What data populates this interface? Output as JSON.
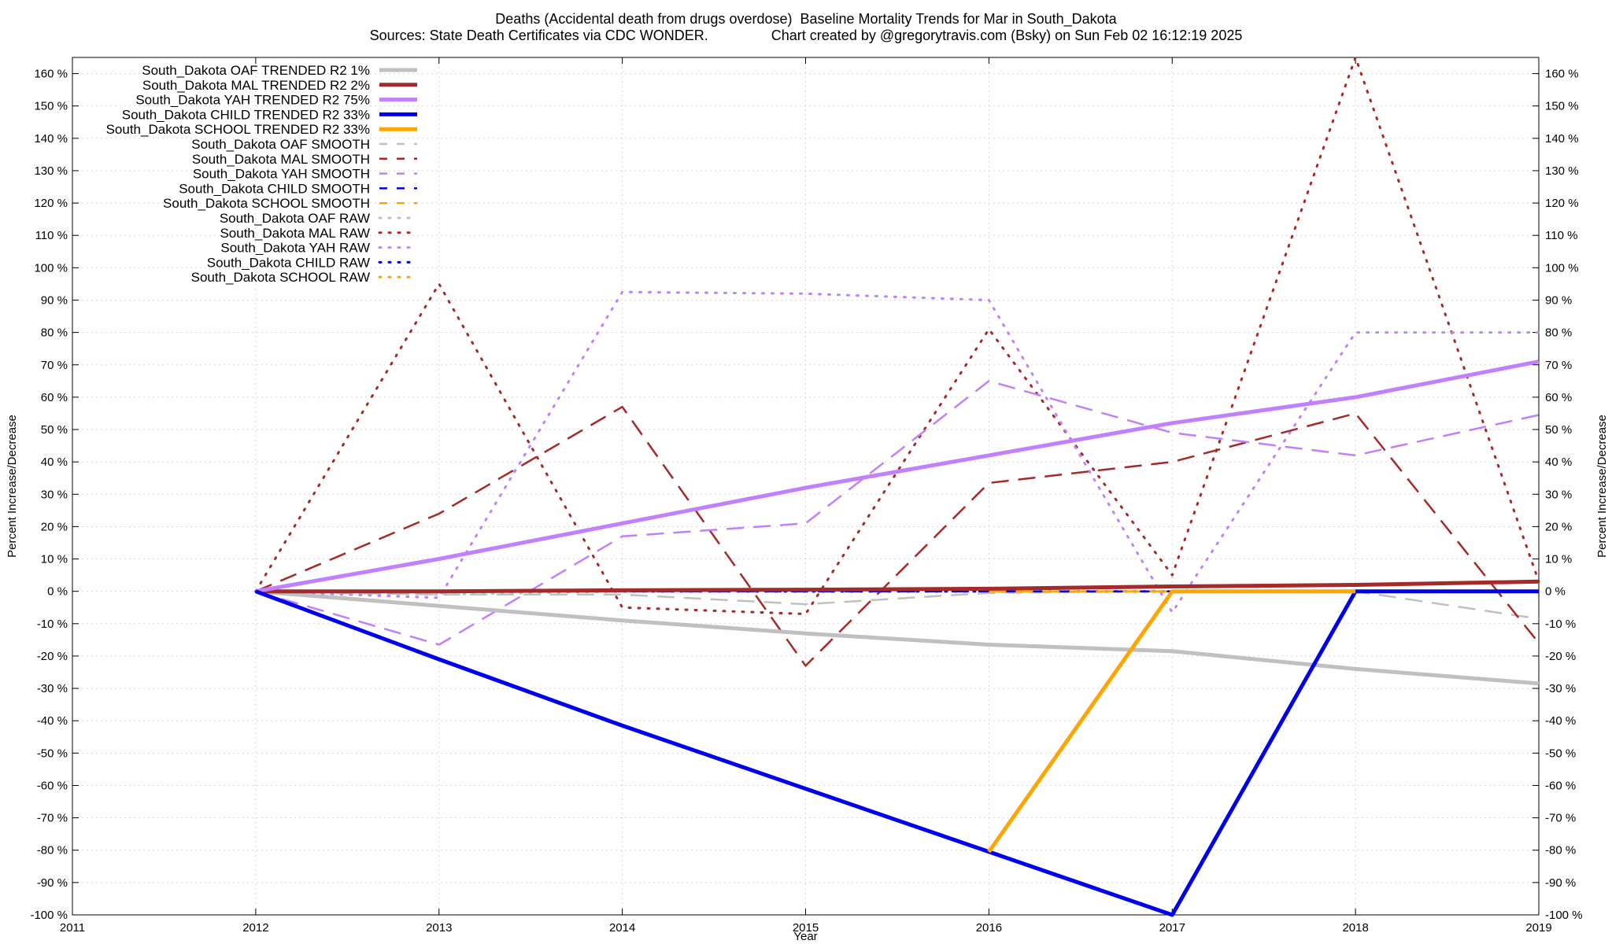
{
  "chart_data": {
    "type": "line",
    "title": "Deaths (Accidental death from drugs overdose)  Baseline Mortality Trends for Mar in South_Dakota",
    "subtitle": "Sources: State Death Certificates via CDC WONDER.                Chart created by @gregorytravis.com (Bsky) on Sun Feb 02 16:12:19 2025",
    "xlabel": "Year",
    "ylabel": "Percent Increase/Decrease",
    "y2label": "Percent Increase/Decrease",
    "xlim": [
      2011,
      2019
    ],
    "ylim": [
      -100,
      165
    ],
    "x_ticks": [
      "2011",
      "2012",
      "2013",
      "2014",
      "2015",
      "2016",
      "2017",
      "2018",
      "2019"
    ],
    "y_ticks": [
      "-100 %",
      "-90 %",
      "-80 %",
      "-70 %",
      "-60 %",
      "-50 %",
      "-40 %",
      "-30 %",
      "-20 %",
      "-10 %",
      "0 %",
      "10 %",
      "20 %",
      "30 %",
      "40 %",
      "50 %",
      "60 %",
      "70 %",
      "80 %",
      "90 %",
      "100 %",
      "110 %",
      "120 %",
      "130 %",
      "140 %",
      "150 %",
      "160 %"
    ],
    "y_tick_values": [
      -100,
      -90,
      -80,
      -70,
      -60,
      -50,
      -40,
      -30,
      -20,
      -10,
      0,
      10,
      20,
      30,
      40,
      50,
      60,
      70,
      80,
      90,
      100,
      110,
      120,
      130,
      140,
      150,
      160
    ],
    "grid": true,
    "legend_position": "top-left",
    "series": [
      {
        "name": "South_Dakota OAF TRENDED R2   1%",
        "style": "solid",
        "color": "#c0c0c0",
        "x": [
          2012,
          2013,
          2014,
          2015,
          2016,
          2017,
          2018,
          2019
        ],
        "y": [
          0,
          -4.5,
          -9,
          -13,
          -16.5,
          -18.5,
          -24,
          -28.5
        ]
      },
      {
        "name": "South_Dakota MAL TRENDED R2   2%",
        "style": "solid",
        "color": "#a52a2a",
        "x": [
          2012,
          2013,
          2014,
          2015,
          2016,
          2017,
          2018,
          2019
        ],
        "y": [
          0,
          0,
          0.3,
          0.5,
          0.8,
          1.5,
          2,
          3
        ]
      },
      {
        "name": "South_Dakota YAH TRENDED R2  75%",
        "style": "solid",
        "color": "#c080ff",
        "x": [
          2012,
          2013,
          2014,
          2015,
          2016,
          2017,
          2018,
          2019
        ],
        "y": [
          0,
          10,
          21,
          32,
          42,
          52,
          60,
          71
        ]
      },
      {
        "name": "South_Dakota CHILD TRENDED R2  33%",
        "style": "solid",
        "color": "#0000ee",
        "x": [
          2012,
          2013,
          2014,
          2015,
          2016,
          2017,
          2018,
          2019
        ],
        "y": [
          0,
          -21,
          -41.5,
          -61,
          -80.5,
          -100,
          0,
          0
        ]
      },
      {
        "name": "South_Dakota SCHOOL TRENDED R2  33%",
        "style": "solid",
        "color": "#ffa500",
        "x": [
          2016,
          2017,
          2018
        ],
        "y": [
          -80.5,
          0,
          0
        ]
      },
      {
        "name": "South_Dakota OAF SMOOTH",
        "style": "dashed",
        "color": "#c0c0c0",
        "x": [
          2012,
          2013,
          2014,
          2015,
          2016,
          2017,
          2018,
          2019
        ],
        "y": [
          0,
          -1,
          -1,
          -4,
          -0.5,
          0,
          0,
          -8.5
        ]
      },
      {
        "name": "South_Dakota MAL SMOOTH",
        "style": "dashed",
        "color": "#a52a2a",
        "x": [
          2012,
          2013,
          2014,
          2015,
          2016,
          2017,
          2018,
          2019
        ],
        "y": [
          0,
          24,
          57,
          -23,
          33.5,
          40,
          55,
          -16
        ]
      },
      {
        "name": "South_Dakota YAH SMOOTH",
        "style": "dashed",
        "color": "#c080ff",
        "x": [
          2012,
          2013,
          2014,
          2015,
          2016,
          2017,
          2018,
          2019
        ],
        "y": [
          0,
          -16.5,
          17,
          21,
          65,
          49,
          42,
          54.5
        ]
      },
      {
        "name": "South_Dakota CHILD SMOOTH",
        "style": "dashed",
        "color": "#0000ee",
        "x": [
          2012,
          2013,
          2014,
          2015,
          2016,
          2017,
          2018,
          2019
        ],
        "y": [
          0,
          0,
          0,
          0,
          0,
          0,
          0,
          0
        ]
      },
      {
        "name": "South_Dakota SCHOOL SMOOTH",
        "style": "dashed",
        "color": "#ffa500",
        "x": [
          2016,
          2017,
          2018
        ],
        "y": [
          0,
          0,
          0
        ]
      },
      {
        "name": "South_Dakota OAF RAW",
        "style": "dotted",
        "color": "#c0c0c0",
        "x": [
          2012,
          2013,
          2014,
          2015,
          2016,
          2017,
          2018,
          2019
        ],
        "y": [
          0,
          -1,
          0,
          0,
          0,
          0,
          0,
          0
        ]
      },
      {
        "name": "South_Dakota MAL RAW",
        "style": "dotted",
        "color": "#a52a2a",
        "x": [
          2012,
          2013,
          2014,
          2015,
          2016,
          2017,
          2018,
          2019
        ],
        "y": [
          0,
          95,
          -5,
          -7,
          81,
          5,
          165,
          3
        ]
      },
      {
        "name": "South_Dakota YAH RAW",
        "style": "dotted",
        "color": "#c080ff",
        "x": [
          2012,
          2013,
          2014,
          2015,
          2016,
          2017,
          2018,
          2019
        ],
        "y": [
          0,
          -2,
          92.5,
          92,
          90,
          -6.5,
          80,
          80
        ]
      },
      {
        "name": "South_Dakota CHILD RAW",
        "style": "dotted",
        "color": "#0000ee",
        "x": [
          2012,
          2013,
          2014,
          2015,
          2016,
          2017,
          2018,
          2019
        ],
        "y": [
          0,
          0,
          0,
          0,
          0,
          0,
          0,
          0
        ]
      },
      {
        "name": "South_Dakota SCHOOL RAW",
        "style": "dotted",
        "color": "#ffa500",
        "x": [
          2016,
          2017,
          2018
        ],
        "y": [
          0,
          0,
          0
        ]
      }
    ]
  }
}
